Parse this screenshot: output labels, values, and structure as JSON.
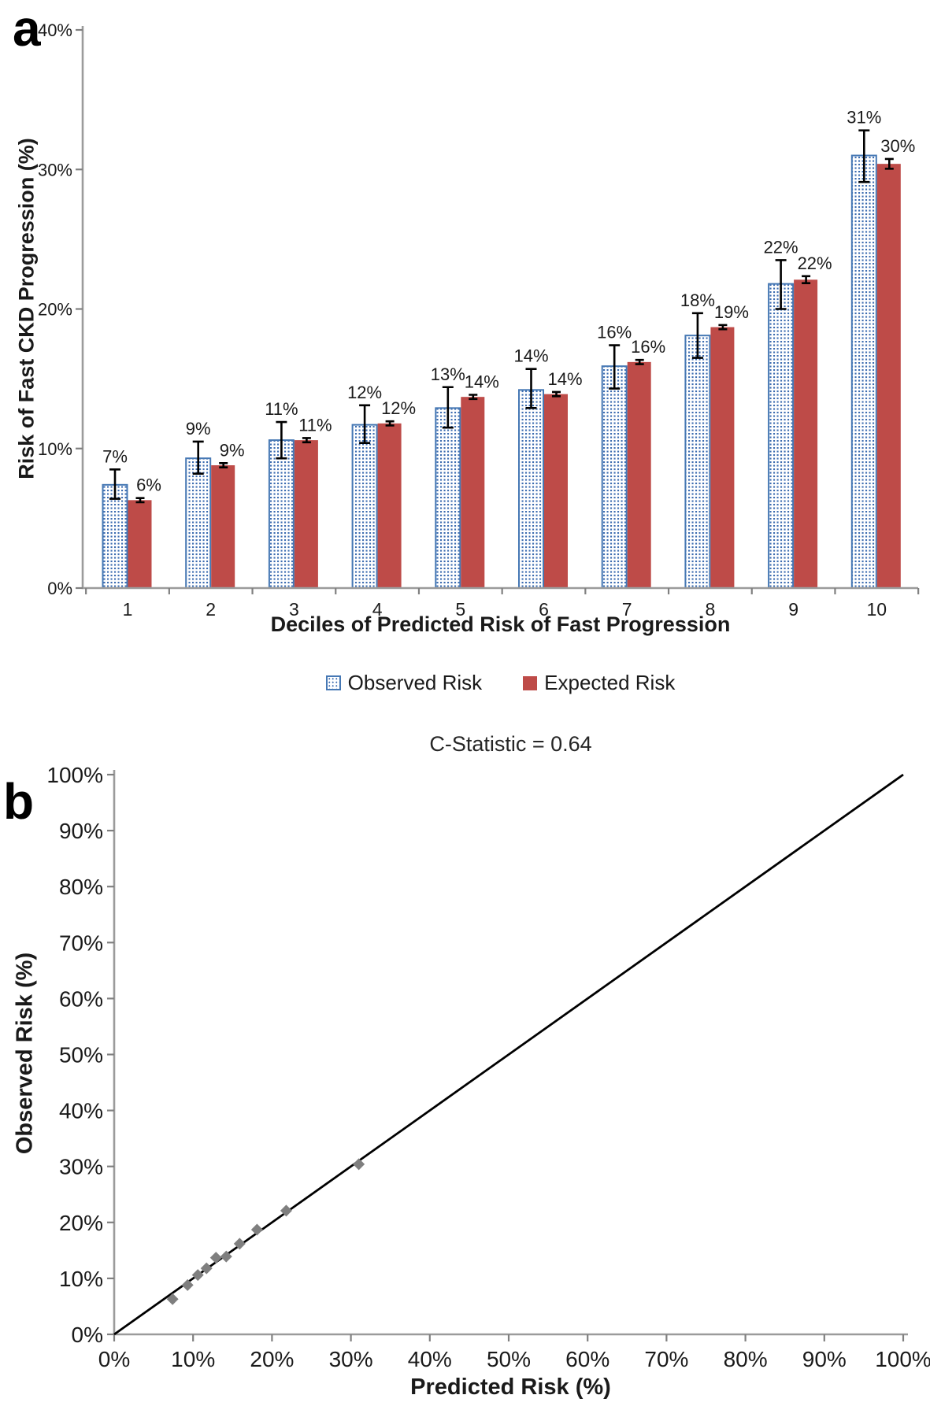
{
  "figure": {
    "panel_a": {
      "panel_label": "a"
    },
    "panel_b": {
      "panel_label": "b"
    }
  },
  "colors": {
    "observed_fill_dot": "#3C6CB0",
    "observed_border": "#4678B4",
    "expected_red": "#BE4B48",
    "marker_gray": "#7F7F7F",
    "axis_gray": "#9B9B9B",
    "tick_gray": "#808080",
    "text_dark": "#1A1A1A",
    "error_black": "#000000",
    "line_black": "#000000"
  },
  "chart_data": [
    {
      "type": "bar",
      "title": "",
      "xlabel": "Deciles of Predicted Risk of Fast Progression",
      "ylabel": "Risk of Fast CKD Progression (%)",
      "categories": [
        "1",
        "2",
        "3",
        "4",
        "5",
        "6",
        "7",
        "8",
        "9",
        "10"
      ],
      "series": [
        {
          "name": "Observed Risk",
          "style": "blue-dotted",
          "values": [
            7.4,
            9.3,
            10.6,
            11.7,
            12.9,
            14.2,
            15.9,
            18.1,
            21.8,
            31.0
          ],
          "labels": [
            "7%",
            "9%",
            "11%",
            "12%",
            "13%",
            "14%",
            "16%",
            "18%",
            "22%",
            "31%"
          ],
          "error_low": [
            6.4,
            8.2,
            9.3,
            10.4,
            11.5,
            12.9,
            14.3,
            16.5,
            20.0,
            29.1
          ],
          "error_high": [
            8.5,
            10.5,
            11.9,
            13.1,
            14.4,
            15.7,
            17.4,
            19.7,
            23.5,
            32.8
          ]
        },
        {
          "name": "Expected Risk",
          "style": "red-solid",
          "values": [
            6.3,
            8.8,
            10.6,
            11.8,
            13.7,
            13.9,
            16.2,
            18.7,
            22.1,
            30.4
          ],
          "labels": [
            "6%",
            "9%",
            "11%",
            "12%",
            "14%",
            "14%",
            "16%",
            "19%",
            "22%",
            "30%"
          ],
          "error_low": [
            6.15,
            8.65,
            10.45,
            11.65,
            13.55,
            13.75,
            16.05,
            18.55,
            21.85,
            30.05
          ],
          "error_high": [
            6.45,
            8.95,
            10.75,
            11.95,
            13.85,
            14.05,
            16.35,
            18.85,
            22.35,
            30.75
          ]
        }
      ],
      "ylim": [
        0,
        40
      ],
      "yticks": {
        "values": [
          0,
          10,
          20,
          30,
          40
        ],
        "labels": [
          "0%",
          "10%",
          "20%",
          "30%",
          "40%"
        ]
      },
      "grid": false,
      "legend_position": "bottom"
    },
    {
      "type": "scatter",
      "title": "C-Statistic = 0.64",
      "xlabel": "Predicted Risk (%)",
      "ylabel": "Observed Risk (%)",
      "xlim": [
        0,
        100
      ],
      "ylim": [
        0,
        100
      ],
      "xticks": {
        "values": [
          0,
          10,
          20,
          30,
          40,
          50,
          60,
          70,
          80,
          90,
          100
        ],
        "labels": [
          "0%",
          "10%",
          "20%",
          "30%",
          "40%",
          "50%",
          "60%",
          "70%",
          "80%",
          "90%",
          "100%"
        ]
      },
      "yticks": {
        "values": [
          0,
          10,
          20,
          30,
          40,
          50,
          60,
          70,
          80,
          90,
          100
        ],
        "labels": [
          "0%",
          "10%",
          "20%",
          "30%",
          "40%",
          "50%",
          "60%",
          "70%",
          "80%",
          "90%",
          "100%"
        ]
      },
      "points": [
        [
          7.4,
          6.3
        ],
        [
          9.3,
          8.8
        ],
        [
          10.6,
          10.6
        ],
        [
          11.7,
          11.8
        ],
        [
          12.9,
          13.7
        ],
        [
          14.2,
          13.9
        ],
        [
          15.9,
          16.2
        ],
        [
          18.1,
          18.7
        ],
        [
          21.8,
          22.1
        ],
        [
          31.0,
          30.4
        ]
      ],
      "marker": "diamond",
      "reference_line": {
        "from": [
          0,
          0
        ],
        "to": [
          100,
          100
        ]
      },
      "grid": false
    }
  ]
}
